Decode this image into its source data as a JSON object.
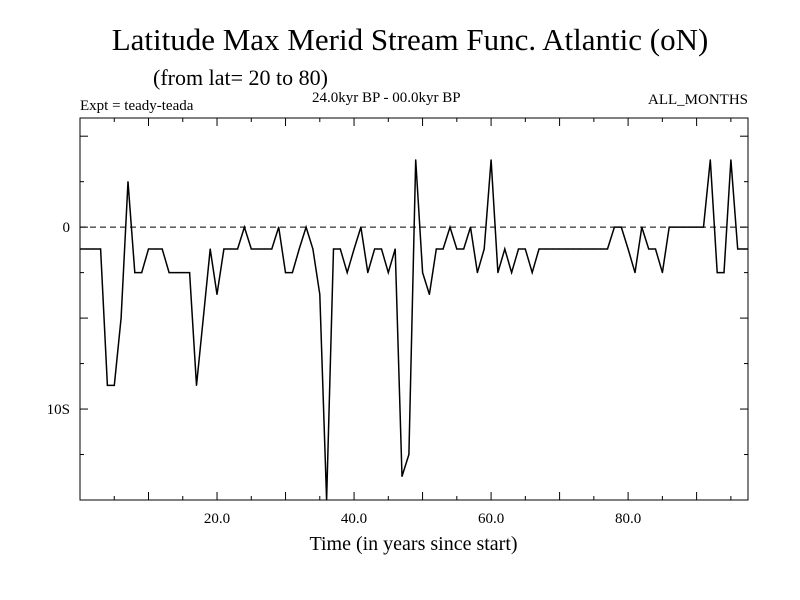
{
  "header": {
    "title": "Latitude Max Merid Stream Func. Atlantic (oN)",
    "subtitle": "(from lat= 20 to 80)",
    "experiment": "Expt = teady-teada",
    "period": "24.0kyr BP - 00.0kyr BP",
    "months": "ALL_MONTHS"
  },
  "chart_data": {
    "type": "line",
    "title": "Latitude Max Merid Stream Func. Atlantic (oN)",
    "subtitle": "(from lat= 20 to 80)",
    "xlabel": "Time (in years since start)",
    "ylabel": "",
    "xlim": [
      0,
      97.5
    ],
    "ylim": [
      -15,
      6
    ],
    "grid": false,
    "reference_line": {
      "y": 0,
      "style": "dashed"
    },
    "x_ticks": [
      {
        "value": 20,
        "label": "20.0"
      },
      {
        "value": 40,
        "label": "40.0"
      },
      {
        "value": 60,
        "label": "60.0"
      },
      {
        "value": 80,
        "label": "80.0"
      }
    ],
    "y_ticks": [
      {
        "value": 0,
        "label": "0"
      },
      {
        "value": -10,
        "label": "10S"
      }
    ],
    "series": [
      {
        "name": "Latitude Max Merid Stream Func.",
        "color": "#000000",
        "x": [
          0.0,
          1,
          2,
          3,
          4,
          5,
          6,
          7,
          8,
          9,
          10,
          11,
          12,
          13,
          14,
          15,
          16,
          17,
          18,
          19,
          20,
          21,
          22,
          23,
          24,
          25,
          26,
          27,
          28,
          29,
          30,
          31,
          32,
          33,
          34,
          35,
          36,
          37,
          38,
          39,
          40,
          41,
          42,
          43,
          44,
          45,
          46,
          47,
          48,
          49,
          50,
          51,
          52,
          53,
          54,
          55,
          56,
          57,
          58,
          59,
          60,
          61,
          62,
          63,
          64,
          65,
          66,
          67,
          68,
          69,
          70,
          71,
          72,
          73,
          74,
          75,
          76,
          77,
          78,
          79,
          80,
          81,
          82,
          83,
          84,
          85,
          86,
          87,
          88,
          89,
          90,
          91,
          92,
          93,
          94,
          95,
          96,
          97,
          97.5
        ],
        "y": [
          -1.2,
          -1.2,
          -1.2,
          -1.2,
          -8.7,
          -8.7,
          -5,
          2.5,
          -2.5,
          -2.5,
          -1.2,
          -1.2,
          -1.2,
          -2.5,
          -2.5,
          -2.5,
          -2.5,
          -8.7,
          -5,
          -1.2,
          -3.7,
          -1.2,
          -1.2,
          -1.2,
          0,
          -1.2,
          -1.2,
          -1.2,
          -1.2,
          0,
          -2.5,
          -2.5,
          -1.2,
          0,
          -1.2,
          -3.7,
          -15,
          -1.2,
          -1.2,
          -2.5,
          -1.2,
          0,
          -2.5,
          -1.2,
          -1.2,
          -2.5,
          -1.2,
          -13.7,
          -12.5,
          3.7,
          -2.5,
          -3.7,
          -1.2,
          -1.2,
          0,
          -1.2,
          -1.2,
          0,
          -2.5,
          -1.2,
          3.7,
          -2.5,
          -1.2,
          -2.5,
          -1.2,
          -1.2,
          -2.5,
          -1.2,
          -1.2,
          -1.2,
          -1.2,
          -1.2,
          -1.2,
          -1.2,
          -1.2,
          -1.2,
          -1.2,
          -1.2,
          0,
          0,
          -1.2,
          -2.5,
          0,
          -1.2,
          -1.2,
          -2.5,
          0,
          0,
          0,
          0,
          0,
          0,
          3.7,
          -2.5,
          -2.5,
          3.7,
          -1.2,
          -1.2,
          -1.2
        ]
      }
    ]
  }
}
